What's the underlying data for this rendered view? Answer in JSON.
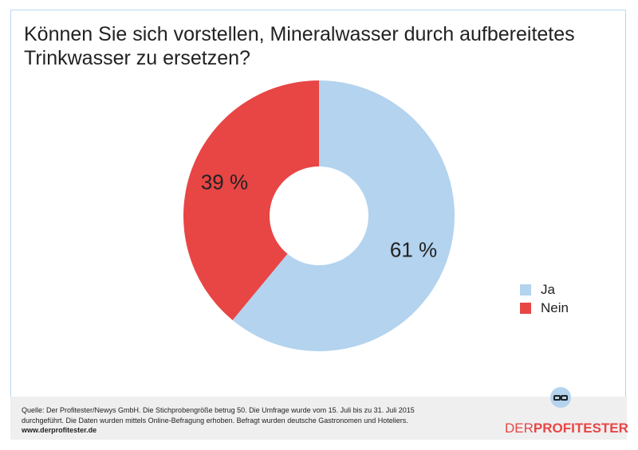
{
  "chart_data": {
    "type": "pie",
    "title": "Können Sie sich vorstellen, Mineralwasser durch aufbereitetes Trinkwasser zu ersetzen?",
    "categories": [
      "Ja",
      "Nein"
    ],
    "values": [
      61,
      39
    ],
    "labels": [
      "61 %",
      "39 %"
    ],
    "colors": [
      "#b3d3ee",
      "#e84545"
    ],
    "donut": true,
    "legend": "right"
  },
  "footer": {
    "source_line1": "Quelle: Der Profitester/Newys GmbH. Die Stichprobengröße betrug 50. Die Umfrage wurde vom 15. Juli bis zu 31. Juli 2015",
    "source_line2": "durchgeführt. Die Daten wurden mittels Online-Befragung erhoben. Befragt wurden deutsche Gastronomen und Hoteliers.",
    "url": "www.derprofitester.de",
    "logo_part1": "DER",
    "logo_part2": "PROFITESTER"
  }
}
